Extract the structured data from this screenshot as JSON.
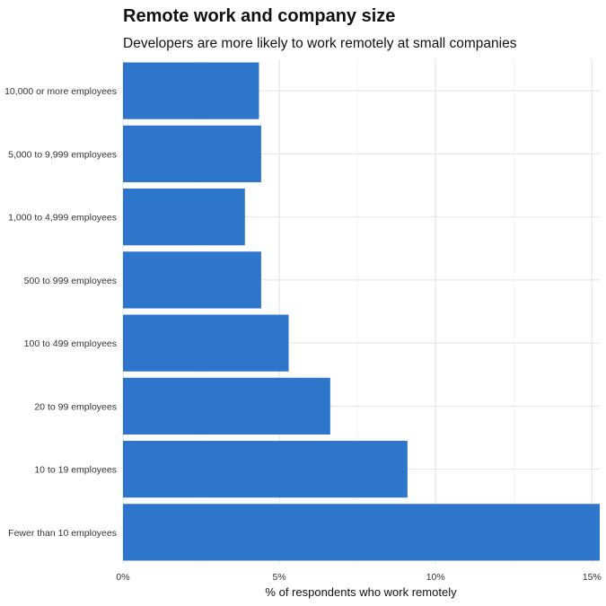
{
  "chart_data": {
    "type": "bar",
    "orientation": "horizontal",
    "title": "Remote work and company size",
    "subtitle": "Developers are more likely to work remotely at small companies",
    "xlabel": "% of respondents who work remotely",
    "ylabel": "",
    "xlim": [
      0,
      15.25
    ],
    "x_ticks": [
      0,
      5,
      10,
      15
    ],
    "x_tick_labels": [
      "0%",
      "5%",
      "10%",
      "15%"
    ],
    "grid": true,
    "legend": "none",
    "bar_color": "#2E75CC",
    "categories": [
      "10,000 or more employees",
      "5,000 to 9,999 employees",
      "1,000 to 4,999 employees",
      "500 to 999 employees",
      "100 to 499 employees",
      "20 to 99 employees",
      "10 to 19 employees",
      "Fewer than 10 employees"
    ],
    "values": [
      4.35,
      4.42,
      3.9,
      4.42,
      5.3,
      6.63,
      9.1,
      15.25
    ]
  }
}
